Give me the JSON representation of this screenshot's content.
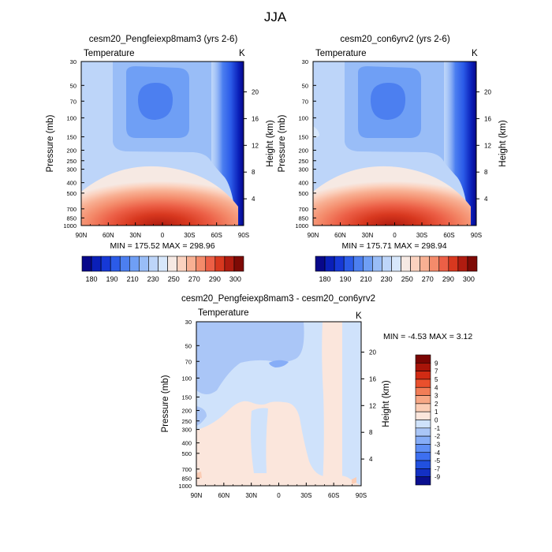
{
  "suptitle": "JJA",
  "colors": {
    "abs": [
      "#08088a",
      "#0a1fb8",
      "#1638d6",
      "#2b5be8",
      "#4c7ff0",
      "#6f9ff5",
      "#99bdf7",
      "#bdd5f9",
      "#d7e7fb",
      "#f6e9e3",
      "#fbd2bf",
      "#f8b093",
      "#f48b6b",
      "#ec5f46",
      "#d8381f",
      "#b01c10",
      "#7e0a05"
    ],
    "diff": [
      "#0a0f8f",
      "#1330c4",
      "#2150df",
      "#3d6ff0",
      "#5f8ff5",
      "#86adf7",
      "#aac6f7",
      "#cfe2fb",
      "#fbe6dc",
      "#fbcdb5",
      "#f7a785",
      "#f27d57",
      "#e9502d",
      "#d12b14",
      "#a81409",
      "#7a0503"
    ]
  },
  "chart_data": [
    {
      "type": "contour",
      "title": "cesm20_Pengfeiexp8mam3 (yrs 2-6)",
      "left_label": "Temperature",
      "right_label": "K",
      "ylabel": "Pressure (mb)",
      "y2label": "Height (km)",
      "xticks": [
        "90N",
        "60N",
        "30N",
        "0",
        "30S",
        "60S",
        "90S"
      ],
      "yticks": [
        30,
        50,
        70,
        100,
        150,
        200,
        250,
        300,
        400,
        500,
        700,
        850,
        1000
      ],
      "y2ticks": [
        20,
        16,
        12,
        8,
        4
      ],
      "stats": "MIN = 175.52  MAX = 298.96",
      "colorbar_labels": [
        "180",
        "190",
        "210",
        "230",
        "250",
        "270",
        "290",
        "300"
      ]
    },
    {
      "type": "contour",
      "title": "cesm20_con6yrv2 (yrs 2-6)",
      "left_label": "Temperature",
      "right_label": "K",
      "ylabel": "Pressure (mb)",
      "y2label": "Height (km)",
      "xticks": [
        "90N",
        "60N",
        "30N",
        "0",
        "30S",
        "60S",
        "90S"
      ],
      "yticks": [
        30,
        50,
        70,
        100,
        150,
        200,
        250,
        300,
        400,
        500,
        700,
        850,
        1000
      ],
      "y2ticks": [
        20,
        16,
        12,
        8,
        4
      ],
      "stats": "MIN = 175.71  MAX = 298.94",
      "colorbar_labels": [
        "180",
        "190",
        "210",
        "230",
        "250",
        "270",
        "290",
        "300"
      ]
    },
    {
      "type": "contour",
      "title": "cesm20_Pengfeiexp8mam3 - cesm20_con6yrv2",
      "left_label": "Temperature",
      "right_label": "K",
      "ylabel": "Pressure (mb)",
      "y2label": "Height (km)",
      "xticks": [
        "90N",
        "60N",
        "30N",
        "0",
        "30S",
        "60S",
        "90S"
      ],
      "yticks": [
        30,
        50,
        70,
        100,
        150,
        200,
        250,
        300,
        400,
        500,
        700,
        850,
        1000
      ],
      "y2ticks": [
        20,
        16,
        12,
        8,
        4
      ],
      "stats": "MIN =  -4.53  MAX =   3.12",
      "colorbar_labels": [
        "9",
        "7",
        "5",
        "4",
        "3",
        "2",
        "1",
        "0",
        "-1",
        "-2",
        "-3",
        "-4",
        "-5",
        "-7",
        "-9"
      ]
    }
  ]
}
